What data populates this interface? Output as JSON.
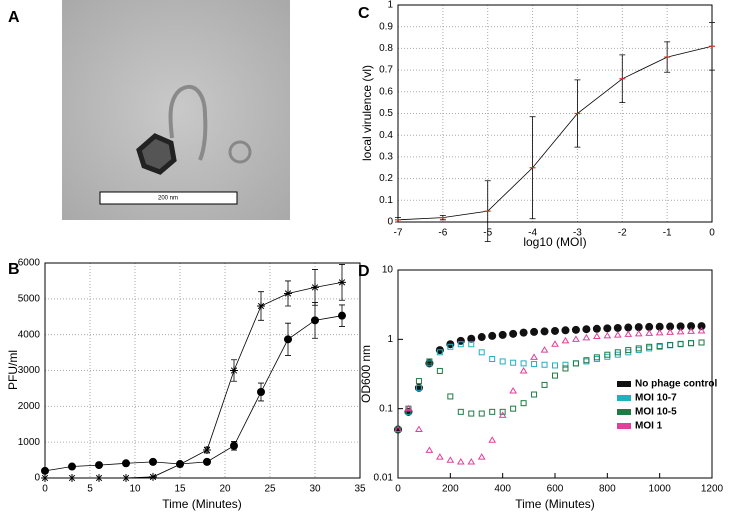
{
  "chart_data": [
    {
      "type": "image",
      "label": "A",
      "scale_bar": "200 nm"
    },
    {
      "type": "line",
      "label": "B",
      "xlabel": "Time (Minutes)",
      "ylabel": "PFU/ml",
      "x": [
        0,
        3,
        6,
        9,
        12,
        15,
        18,
        21,
        24,
        27,
        30,
        33
      ],
      "xlim": [
        0,
        35
      ],
      "xticks": [
        0,
        5,
        10,
        15,
        20,
        25,
        30,
        35
      ],
      "ylim": [
        0,
        6000
      ],
      "yticks": [
        0,
        1000,
        2000,
        3000,
        4000,
        5000,
        6000
      ],
      "grid": true,
      "series": [
        {
          "color": "#000000",
          "marker": "circle",
          "values": [
            200,
            320,
            360,
            410,
            450,
            390,
            450,
            900,
            2400,
            3870,
            4400,
            4530
          ],
          "errors": [
            50,
            60,
            40,
            40,
            50,
            40,
            60,
            120,
            250,
            450,
            500,
            300
          ]
        },
        {
          "color": "#000000",
          "marker": "star",
          "values": [
            0,
            0,
            0,
            0,
            30,
            380,
            780,
            3000,
            4800,
            5150,
            5320,
            5460
          ],
          "errors": [
            0,
            0,
            0,
            0,
            0,
            0,
            80,
            300,
            400,
            350,
            500,
            500
          ]
        }
      ]
    },
    {
      "type": "line",
      "label": "C",
      "xlabel": "log10 (MOI)",
      "ylabel": "local virulence (vl)",
      "x": [
        -7,
        -6,
        -5,
        -4,
        -3,
        -2,
        -1,
        0
      ],
      "xlim": [
        -7,
        0
      ],
      "xticks": [
        -7,
        -6,
        -5,
        -4,
        -3,
        -2,
        -1,
        0
      ],
      "ylim": [
        0,
        1
      ],
      "yticks": [
        0,
        0.1,
        0.2,
        0.3,
        0.4,
        0.5,
        0.6,
        0.7,
        0.8,
        0.9,
        1
      ],
      "grid": true,
      "series": [
        {
          "color": "#e03020",
          "marker": "dash",
          "values": [
            0.01,
            0.02,
            0.05,
            0.25,
            0.5,
            0.66,
            0.76,
            0.81
          ],
          "errors": [
            0.01,
            0.01,
            0.14,
            0.235,
            0.155,
            0.11,
            0.07,
            0.11
          ]
        }
      ]
    },
    {
      "type": "scatter",
      "label": "D",
      "xlabel": "Time (Minutes)",
      "ylabel": "OD600 nm",
      "log_y": true,
      "legend": "lower right",
      "x": [
        0,
        40,
        80,
        120,
        160,
        200,
        240,
        280,
        320,
        360,
        400,
        440,
        480,
        520,
        560,
        600,
        640,
        680,
        720,
        760,
        800,
        840,
        880,
        920,
        960,
        1000,
        1040,
        1080,
        1120,
        1160
      ],
      "xlim": [
        0,
        1200
      ],
      "xticks": [
        0,
        200,
        400,
        600,
        800,
        1000,
        1200
      ],
      "ylim": [
        0.01,
        10
      ],
      "yticks": [
        0.01,
        0.1,
        1,
        10
      ],
      "grid": false,
      "series": [
        {
          "name": "No phage control",
          "color": "#111111",
          "marker": "circle",
          "values": [
            0.05,
            0.09,
            0.2,
            0.45,
            0.7,
            0.85,
            0.95,
            1.02,
            1.08,
            1.12,
            1.16,
            1.2,
            1.25,
            1.28,
            1.3,
            1.32,
            1.35,
            1.37,
            1.4,
            1.42,
            1.44,
            1.46,
            1.48,
            1.5,
            1.51,
            1.52,
            1.53,
            1.54,
            1.55,
            1.55
          ]
        },
        {
          "name": "MOI 10-7",
          "color": "#20b0c0",
          "marker": "square",
          "values": [
            0.05,
            0.09,
            0.2,
            0.45,
            0.65,
            0.78,
            0.85,
            0.85,
            0.65,
            0.52,
            0.48,
            0.46,
            0.45,
            0.44,
            0.43,
            0.42,
            0.43,
            0.45,
            0.48,
            0.52,
            0.56,
            0.6,
            0.65,
            0.7,
            0.74,
            0.78,
            0.82,
            0.85,
            0.88,
            0.9
          ]
        },
        {
          "name": "MOI 10-5",
          "color": "#1f7a45",
          "marker": "square",
          "values": [
            0.05,
            0.1,
            0.25,
            0.48,
            0.35,
            0.15,
            0.09,
            0.085,
            0.085,
            0.09,
            0.09,
            0.1,
            0.12,
            0.16,
            0.22,
            0.3,
            0.38,
            0.45,
            0.5,
            0.55,
            0.6,
            0.65,
            0.7,
            0.74,
            0.78,
            0.8,
            0.83,
            0.86,
            0.88,
            0.9
          ]
        },
        {
          "name": "MOI 1",
          "color": "#e0409a",
          "marker": "triangle",
          "values": [
            0.05,
            0.1,
            0.05,
            0.025,
            0.02,
            0.018,
            0.017,
            0.017,
            0.02,
            0.035,
            0.08,
            0.18,
            0.35,
            0.55,
            0.7,
            0.85,
            0.95,
            1.0,
            1.05,
            1.1,
            1.12,
            1.15,
            1.18,
            1.2,
            1.22,
            1.24,
            1.26,
            1.28,
            1.3,
            1.32
          ]
        }
      ]
    }
  ]
}
